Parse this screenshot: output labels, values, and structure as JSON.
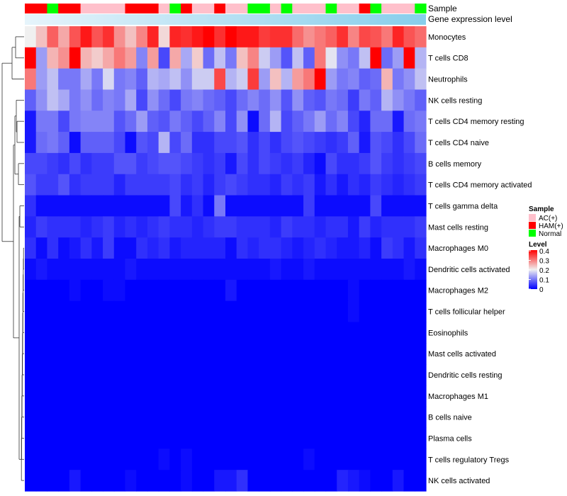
{
  "chart_data": {
    "type": "heatmap",
    "title": "",
    "row_labels": [
      "Monocytes",
      "T cells CD8",
      "Neutrophils",
      "NK cells resting",
      "T cells CD4 memory resting",
      "T cells CD4 naive",
      "B cells memory",
      "T cells CD4 memory activated",
      "T cells gamma delta",
      "Mast cells resting",
      "Macrophages M0",
      "Dendritic cells activated",
      "Macrophages M2",
      "T cells follicular helper",
      "Eosinophils",
      "Mast cells activated",
      "Dendritic cells resting",
      "Macrophages M1",
      "B cells naive",
      "Plasma cells",
      "T cells regulatory  Tregs",
      "NK cells activated"
    ],
    "column_annotations": {
      "sample_label": "Sample",
      "gene_label": "Gene expression level",
      "samples": [
        "HAM(+)",
        "HAM(+)",
        "Normal",
        "HAM(+)",
        "HAM(+)",
        "AC(+)",
        "AC(+)",
        "AC(+)",
        "AC(+)",
        "HAM(+)",
        "HAM(+)",
        "HAM(+)",
        "AC(+)",
        "Normal",
        "HAM(+)",
        "AC(+)",
        "AC(+)",
        "HAM(+)",
        "AC(+)",
        "AC(+)",
        "Normal",
        "Normal",
        "AC(+)",
        "Normal",
        "AC(+)",
        "AC(+)",
        "AC(+)",
        "Normal",
        "AC(+)",
        "AC(+)",
        "HAM(+)",
        "Normal",
        "AC(+)",
        "AC(+)",
        "AC(+)",
        "Normal"
      ]
    },
    "values": [
      [
        0.2,
        0.24,
        0.32,
        0.26,
        0.33,
        0.38,
        0.33,
        0.36,
        0.28,
        0.24,
        0.29,
        0.37,
        0.22,
        0.37,
        0.36,
        0.38,
        0.42,
        0.36,
        0.43,
        0.38,
        0.38,
        0.35,
        0.36,
        0.36,
        0.31,
        0.28,
        0.3,
        0.32,
        0.36,
        0.29,
        0.34,
        0.33,
        0.3,
        0.37,
        0.33,
        0.31
      ],
      [
        0.41,
        0.13,
        0.25,
        0.28,
        0.41,
        0.25,
        0.23,
        0.26,
        0.3,
        0.27,
        0.11,
        0.27,
        0.06,
        0.26,
        0.14,
        0.23,
        0.09,
        0.16,
        0.1,
        0.24,
        0.29,
        0.17,
        0.13,
        0.07,
        0.16,
        0.08,
        0.3,
        0.19,
        0.12,
        0.1,
        0.16,
        0.41,
        0.09,
        0.13,
        0.42,
        0.15
      ],
      [
        0.3,
        0.13,
        0.16,
        0.1,
        0.1,
        0.14,
        0.1,
        0.18,
        0.1,
        0.11,
        0.08,
        0.15,
        0.14,
        0.16,
        0.12,
        0.17,
        0.17,
        0.34,
        0.15,
        0.17,
        0.35,
        0.13,
        0.24,
        0.15,
        0.27,
        0.3,
        0.43,
        0.13,
        0.1,
        0.11,
        0.08,
        0.09,
        0.25,
        0.1,
        0.12,
        0.16
      ],
      [
        0.08,
        0.12,
        0.16,
        0.14,
        0.1,
        0.12,
        0.09,
        0.11,
        0.1,
        0.14,
        0.06,
        0.12,
        0.09,
        0.06,
        0.1,
        0.11,
        0.09,
        0.08,
        0.06,
        0.09,
        0.11,
        0.09,
        0.12,
        0.07,
        0.12,
        0.08,
        0.07,
        0.1,
        0.09,
        0.05,
        0.1,
        0.08,
        0.15,
        0.12,
        0.1,
        0.08
      ],
      [
        0.02,
        0.1,
        0.1,
        0.06,
        0.1,
        0.11,
        0.11,
        0.11,
        0.07,
        0.09,
        0.13,
        0.08,
        0.07,
        0.1,
        0.08,
        0.06,
        0.08,
        0.11,
        0.06,
        0.12,
        0.01,
        0.09,
        0.15,
        0.06,
        0.08,
        0.1,
        0.13,
        0.09,
        0.11,
        0.06,
        0.03,
        0.09,
        0.09,
        0.02,
        0.09,
        0.1
      ],
      [
        0.02,
        0.09,
        0.1,
        0.08,
        0.01,
        0.08,
        0.08,
        0.08,
        0.06,
        0.01,
        0.07,
        0.06,
        0.15,
        0.06,
        0.09,
        0.04,
        0.04,
        0.06,
        0.06,
        0.07,
        0.04,
        0.06,
        0.04,
        0.06,
        0.07,
        0.06,
        0.05,
        0.04,
        0.05,
        0.08,
        0.02,
        0.07,
        0.06,
        0.04,
        0.06,
        0.09
      ],
      [
        0.06,
        0.06,
        0.05,
        0.04,
        0.06,
        0.04,
        0.05,
        0.05,
        0.07,
        0.07,
        0.05,
        0.06,
        0.07,
        0.07,
        0.06,
        0.05,
        0.04,
        0.05,
        0.02,
        0.06,
        0.04,
        0.06,
        0.05,
        0.04,
        0.05,
        0.03,
        0.01,
        0.06,
        0.04,
        0.04,
        0.05,
        0.07,
        0.05,
        0.04,
        0.05,
        0.06
      ],
      [
        0.07,
        0.05,
        0.05,
        0.07,
        0.04,
        0.05,
        0.05,
        0.05,
        0.03,
        0.05,
        0.05,
        0.05,
        0.05,
        0.06,
        0.04,
        0.05,
        0.03,
        0.05,
        0.06,
        0.05,
        0.04,
        0.04,
        0.03,
        0.05,
        0.04,
        0.05,
        0.02,
        0.04,
        0.02,
        0.04,
        0.03,
        0.05,
        0.04,
        0.03,
        0.04,
        0.05
      ],
      [
        0.04,
        0.01,
        0.01,
        0.01,
        0.01,
        0.01,
        0.01,
        0.01,
        0.01,
        0.01,
        0.01,
        0.01,
        0.01,
        0.06,
        0.02,
        0.04,
        0.01,
        0.1,
        0.01,
        0.01,
        0.01,
        0.01,
        0.01,
        0.01,
        0.01,
        0.05,
        0.01,
        0.01,
        0.01,
        0.01,
        0.01,
        0.06,
        0.01,
        0.01,
        0.01,
        0.01
      ],
      [
        0.03,
        0.05,
        0.04,
        0.04,
        0.04,
        0.03,
        0.04,
        0.05,
        0.03,
        0.04,
        0.03,
        0.04,
        0.05,
        0.04,
        0.04,
        0.03,
        0.04,
        0.05,
        0.05,
        0.04,
        0.04,
        0.04,
        0.03,
        0.05,
        0.04,
        0.04,
        0.03,
        0.04,
        0.04,
        0.02,
        0.05,
        0.03,
        0.04,
        0.04,
        0.04,
        0.05
      ],
      [
        0.04,
        0.01,
        0.04,
        0.01,
        0.02,
        0.04,
        0.02,
        0.05,
        0.01,
        0.01,
        0.04,
        0.03,
        0.04,
        0.02,
        0.03,
        0.03,
        0.03,
        0.03,
        0.01,
        0.04,
        0.03,
        0.04,
        0.04,
        0.03,
        0.02,
        0.03,
        0.04,
        0.03,
        0.02,
        0.02,
        0.03,
        0.01,
        0.05,
        0.04,
        0.02,
        0.04
      ],
      [
        0.01,
        0.02,
        0.01,
        0.01,
        0.01,
        0.01,
        0.01,
        0.01,
        0.01,
        0.02,
        0.01,
        0.01,
        0.01,
        0.01,
        0.01,
        0.01,
        0.01,
        0.01,
        0.01,
        0.01,
        0.01,
        0.01,
        0.02,
        0.01,
        0.01,
        0.02,
        0.01,
        0.01,
        0.01,
        0.01,
        0.01,
        0.01,
        0.01,
        0.01,
        0.02,
        0.01
      ],
      [
        0,
        0,
        0,
        0,
        0.01,
        0,
        0,
        0.01,
        0.01,
        0,
        0,
        0,
        0,
        0,
        0,
        0,
        0,
        0,
        0.02,
        0,
        0,
        0,
        0,
        0,
        0,
        0,
        0,
        0,
        0,
        0.01,
        0,
        0,
        0,
        0,
        0,
        0
      ],
      [
        0,
        0,
        0,
        0,
        0,
        0,
        0,
        0,
        0,
        0,
        0,
        0,
        0,
        0,
        0,
        0,
        0,
        0,
        0,
        0,
        0,
        0,
        0,
        0,
        0,
        0,
        0,
        0,
        0,
        0.01,
        0,
        0,
        0,
        0,
        0,
        0
      ],
      [
        0,
        0,
        0,
        0,
        0,
        0,
        0,
        0,
        0,
        0,
        0,
        0,
        0,
        0,
        0,
        0,
        0,
        0,
        0,
        0,
        0,
        0,
        0,
        0,
        0,
        0,
        0,
        0,
        0,
        0,
        0,
        0,
        0,
        0,
        0,
        0
      ],
      [
        0,
        0,
        0,
        0,
        0,
        0,
        0,
        0,
        0,
        0,
        0,
        0,
        0,
        0,
        0,
        0,
        0,
        0,
        0,
        0,
        0,
        0,
        0,
        0,
        0,
        0,
        0,
        0,
        0,
        0,
        0,
        0,
        0,
        0,
        0,
        0
      ],
      [
        0,
        0,
        0,
        0,
        0,
        0,
        0,
        0,
        0,
        0,
        0,
        0,
        0,
        0,
        0,
        0,
        0,
        0,
        0,
        0,
        0,
        0,
        0,
        0,
        0,
        0,
        0,
        0,
        0,
        0,
        0,
        0,
        0,
        0,
        0,
        0
      ],
      [
        0,
        0,
        0,
        0,
        0,
        0,
        0,
        0,
        0,
        0,
        0,
        0,
        0,
        0,
        0,
        0,
        0,
        0,
        0,
        0,
        0,
        0,
        0,
        0,
        0,
        0,
        0,
        0,
        0,
        0,
        0,
        0,
        0,
        0,
        0,
        0
      ],
      [
        0,
        0,
        0,
        0,
        0,
        0,
        0,
        0,
        0,
        0,
        0,
        0,
        0,
        0,
        0,
        0,
        0,
        0,
        0,
        0,
        0,
        0,
        0,
        0,
        0,
        0,
        0,
        0,
        0,
        0,
        0,
        0,
        0,
        0,
        0,
        0
      ],
      [
        0,
        0,
        0,
        0,
        0,
        0,
        0,
        0,
        0,
        0,
        0,
        0,
        0,
        0,
        0,
        0,
        0,
        0,
        0,
        0,
        0,
        0,
        0,
        0,
        0,
        0,
        0,
        0,
        0,
        0,
        0,
        0,
        0,
        0,
        0,
        0
      ],
      [
        0,
        0,
        0,
        0,
        0,
        0,
        0,
        0,
        0,
        0,
        0,
        0,
        0.01,
        0,
        0.01,
        0,
        0,
        0,
        0,
        0,
        0,
        0,
        0,
        0,
        0,
        0.01,
        0,
        0,
        0,
        0,
        0,
        0,
        0,
        0,
        0,
        0
      ],
      [
        0,
        0,
        0,
        0,
        0.02,
        0,
        0,
        0,
        0,
        0.01,
        0,
        0,
        0,
        0,
        0.01,
        0,
        0,
        0.02,
        0.02,
        0.04,
        0,
        0,
        0,
        0,
        0,
        0,
        0,
        0,
        0.03,
        0.02,
        0.01,
        0,
        0,
        0.02,
        0,
        0
      ]
    ],
    "legend_sample": {
      "title": "Sample",
      "entries": [
        {
          "label": "AC(+)",
          "color": "#ffc0cb"
        },
        {
          "label": "HAM(+)",
          "color": "#ff0000"
        },
        {
          "label": "Normal",
          "color": "#00ff00"
        }
      ]
    },
    "legend_level": {
      "title": "Level",
      "ticks": [
        "0.4",
        "0.3",
        "0.2",
        "0.1",
        "0"
      ],
      "range": [
        0,
        0.4
      ],
      "low_color": "#0000ff",
      "mid_color": "#f0f0f0",
      "high_color": "#ff0000"
    },
    "gene_bar_color": "#87ceeb",
    "dendrogram": "row"
  }
}
